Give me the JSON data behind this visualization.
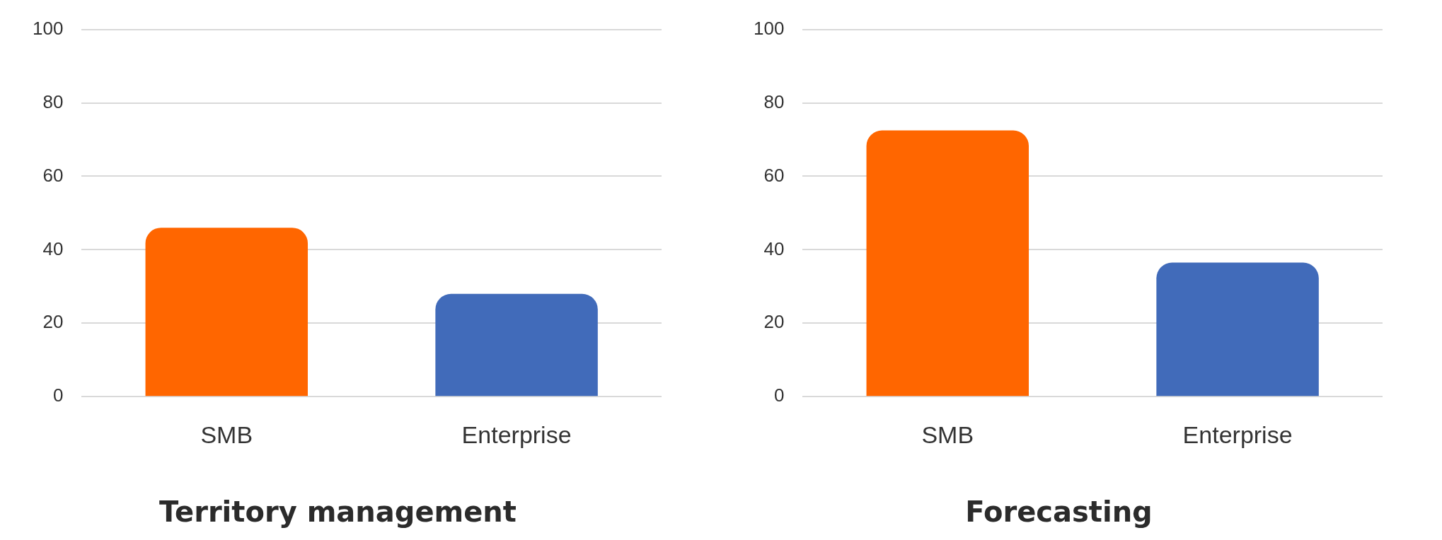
{
  "chart_data": [
    {
      "type": "bar",
      "title": "Territory management",
      "categories": [
        "SMB",
        "Enterprise"
      ],
      "values": [
        46,
        28
      ],
      "colors": [
        "#ff6600",
        "#416bba"
      ],
      "ylim": [
        0,
        100
      ],
      "yticks": [
        0,
        20,
        40,
        60,
        80,
        100
      ],
      "grid": "y",
      "legend": false
    },
    {
      "type": "bar",
      "title": "Forecasting",
      "categories": [
        "SMB",
        "Enterprise"
      ],
      "values": [
        72.5,
        36.5
      ],
      "colors": [
        "#ff6600",
        "#416bba"
      ],
      "ylim": [
        0,
        100
      ],
      "yticks": [
        0,
        20,
        40,
        60,
        80,
        100
      ],
      "grid": "y",
      "legend": false
    }
  ]
}
